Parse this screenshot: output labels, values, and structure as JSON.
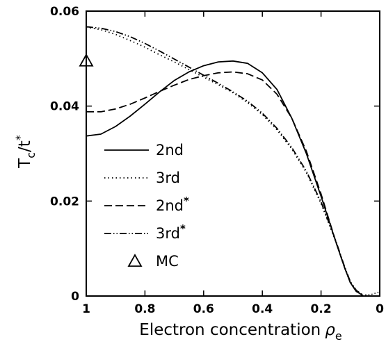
{
  "chart_data": {
    "type": "line",
    "title": "",
    "xlabel": "Electron concentration",
    "xlabel_symbol": "ρ",
    "xlabel_subscript": "e",
    "ylabel_main": "T",
    "ylabel_sub": "c",
    "ylabel_slash": "/t",
    "ylabel_sup": "*",
    "xlim": [
      1,
      0
    ],
    "ylim": [
      0,
      0.06
    ],
    "x_ticks": [
      1,
      0.8,
      0.6,
      0.4,
      0.2,
      0
    ],
    "x_tick_labels": [
      "1",
      "0.8",
      "0.6",
      "0.4",
      "0.2",
      "0"
    ],
    "y_ticks": [
      0,
      0.02,
      0.04,
      0.06
    ],
    "y_tick_labels": [
      "0",
      "0.02",
      "0.04",
      "0.06"
    ],
    "grid": false,
    "legend_position": "left",
    "series": [
      {
        "name": "2nd",
        "name_sup": "",
        "style": "solid",
        "x": [
          1.0,
          0.95,
          0.9,
          0.85,
          0.8,
          0.75,
          0.7,
          0.65,
          0.6,
          0.55,
          0.5,
          0.45,
          0.4,
          0.35,
          0.3,
          0.25,
          0.2,
          0.15,
          0.12,
          0.1,
          0.08,
          0.06
        ],
        "y": [
          0.0337,
          0.0341,
          0.0357,
          0.0379,
          0.0404,
          0.043,
          0.0454,
          0.0472,
          0.0485,
          0.0493,
          0.0495,
          0.049,
          0.047,
          0.0435,
          0.0375,
          0.03,
          0.021,
          0.0115,
          0.006,
          0.0028,
          0.001,
          0.0002
        ]
      },
      {
        "name": "3rd",
        "name_sup": "",
        "style": "dotted",
        "x": [
          1.0,
          0.95,
          0.9,
          0.85,
          0.8,
          0.75,
          0.7,
          0.65,
          0.6,
          0.55,
          0.5,
          0.45,
          0.4,
          0.35,
          0.3,
          0.25,
          0.2,
          0.15,
          0.12,
          0.1,
          0.08,
          0.06
        ],
        "y": [
          0.0566,
          0.0561,
          0.0551,
          0.0538,
          0.0524,
          0.0508,
          0.0493,
          0.0477,
          0.0461,
          0.0445,
          0.0428,
          0.0407,
          0.0382,
          0.035,
          0.031,
          0.026,
          0.0195,
          0.0115,
          0.006,
          0.003,
          0.0012,
          0.0003
        ]
      },
      {
        "name": "2nd",
        "name_sup": "*",
        "style": "dashed",
        "x": [
          1.0,
          0.95,
          0.9,
          0.85,
          0.8,
          0.75,
          0.7,
          0.65,
          0.6,
          0.55,
          0.5,
          0.45,
          0.4,
          0.35,
          0.3,
          0.25,
          0.2,
          0.15,
          0.12,
          0.1,
          0.08,
          0.06
        ],
        "y": [
          0.0388,
          0.0388,
          0.0394,
          0.0404,
          0.0417,
          0.0431,
          0.0444,
          0.0456,
          0.0464,
          0.047,
          0.0472,
          0.0468,
          0.0455,
          0.0425,
          0.0375,
          0.0305,
          0.0215,
          0.0115,
          0.006,
          0.0028,
          0.001,
          0.0002
        ]
      },
      {
        "name": "3rd",
        "name_sup": "*",
        "style": "dashdotdot",
        "x": [
          1.0,
          0.95,
          0.9,
          0.85,
          0.8,
          0.75,
          0.7,
          0.65,
          0.6,
          0.55,
          0.5,
          0.45,
          0.4,
          0.35,
          0.3,
          0.25,
          0.2,
          0.15,
          0.12,
          0.1,
          0.08,
          0.06
        ],
        "y": [
          0.0567,
          0.0564,
          0.0557,
          0.0546,
          0.0532,
          0.0516,
          0.0499,
          0.0482,
          0.0465,
          0.0448,
          0.043,
          0.041,
          0.0385,
          0.0353,
          0.0313,
          0.0263,
          0.0198,
          0.0117,
          0.0062,
          0.003,
          0.0012,
          0.0003
        ]
      }
    ],
    "markers": [
      {
        "name": "MC",
        "symbol": "triangle-open",
        "x": 1.0,
        "y": 0.0495
      }
    ],
    "tail": {
      "x": [
        0.06,
        0.03,
        0.0
      ],
      "y": [
        0.0002,
        0.0003,
        0.0009
      ]
    }
  }
}
